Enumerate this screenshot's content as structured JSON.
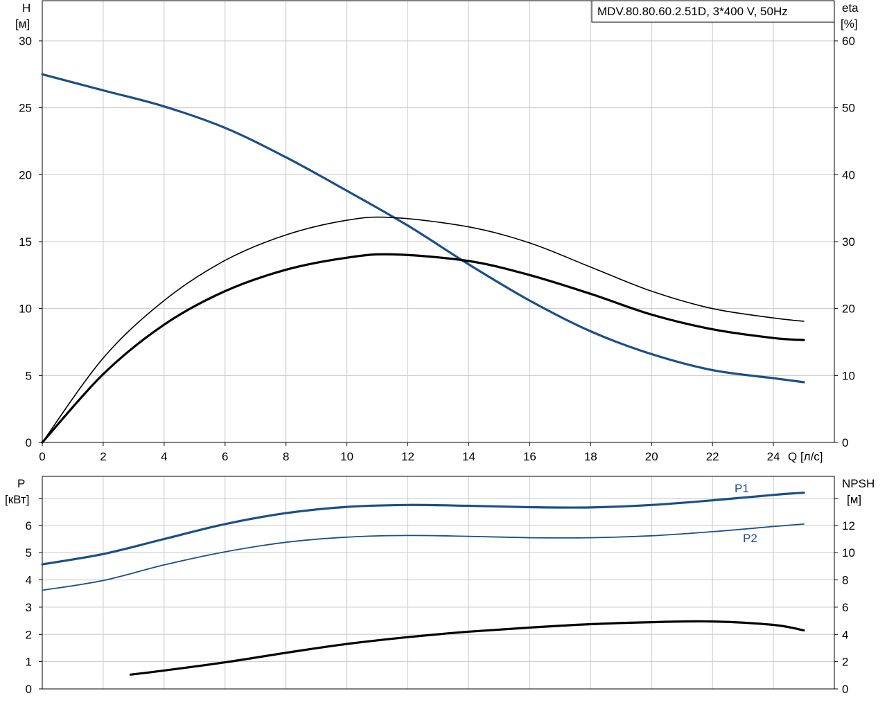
{
  "colors": {
    "blue": "#1a4f88",
    "black": "#000000",
    "grid": "#c8c8c8"
  },
  "chart_data": [
    {
      "type": "line",
      "title": "MDV.80.80.60.2.51D, 3*400 V, 50Hz",
      "xlabel": "Q [л/с]",
      "ylabel_left_name": "H",
      "ylabel_left_unit": "[м]",
      "ylabel_right_name": "eta",
      "ylabel_right_unit": "[%]",
      "xlim": [
        0,
        26
      ],
      "ylim_left": [
        0,
        33
      ],
      "ylim_right": [
        0,
        66
      ],
      "x_ticks": [
        "0",
        "2",
        "4",
        "6",
        "8",
        "10",
        "12",
        "14",
        "16",
        "18",
        "20",
        "22",
        "24"
      ],
      "y_ticks_left": [
        "0",
        "5",
        "10",
        "15",
        "20",
        "25",
        "30"
      ],
      "y_ticks_right": [
        "0",
        "10",
        "20",
        "30",
        "40",
        "50",
        "60"
      ],
      "grid": true,
      "series": [
        {
          "axis": "left",
          "color": "#1a4f88",
          "width": 3.2,
          "x": [
            0,
            2,
            4,
            6,
            8,
            10,
            12,
            14,
            16,
            18,
            20,
            22,
            24,
            25
          ],
          "y": [
            27.5,
            26.3,
            25.1,
            23.5,
            21.3,
            18.8,
            16.2,
            13.3,
            10.6,
            8.3,
            6.6,
            5.4,
            4.8,
            4.5
          ]
        },
        {
          "axis": "right",
          "color": "#000000",
          "width": 1.6,
          "x": [
            0,
            2,
            4,
            6,
            8,
            10,
            11.5,
            14,
            16,
            18,
            20,
            22,
            24,
            25
          ],
          "y": [
            0,
            12.6,
            21.2,
            27.2,
            31.0,
            33.2,
            33.6,
            32.2,
            29.8,
            26.2,
            22.6,
            20.0,
            18.6,
            18.1
          ]
        },
        {
          "axis": "right",
          "color": "#000000",
          "width": 3.2,
          "x": [
            0,
            2,
            4,
            6,
            8,
            10,
            11.5,
            14,
            16,
            18,
            20,
            22,
            24,
            25
          ],
          "y": [
            0,
            10.2,
            17.6,
            22.6,
            25.8,
            27.6,
            28.1,
            27.1,
            25.0,
            22.2,
            19.1,
            16.9,
            15.6,
            15.3
          ]
        }
      ]
    },
    {
      "type": "line",
      "ylabel_left_name": "P",
      "ylabel_left_unit": "[кВт]",
      "ylabel_right_name": "NPSH",
      "ylabel_right_unit": "[м]",
      "xlim": [
        0,
        26
      ],
      "ylim_left": [
        0,
        7.8
      ],
      "ylim_right": [
        0,
        15.6
      ],
      "y_ticks_left": [
        "0",
        "1",
        "2",
        "3",
        "4",
        "5",
        "6"
      ],
      "y_ticks_right": [
        "0",
        "2",
        "4",
        "6",
        "8",
        "10",
        "12"
      ],
      "grid": true,
      "series": [
        {
          "name": "P1",
          "axis": "left",
          "color": "#1a4f88",
          "width": 3.2,
          "x": [
            0,
            2,
            4,
            6,
            8,
            10,
            12,
            14,
            16,
            18,
            20,
            22,
            24,
            25
          ],
          "y": [
            4.57,
            4.95,
            5.5,
            6.05,
            6.45,
            6.68,
            6.75,
            6.72,
            6.67,
            6.66,
            6.75,
            6.92,
            7.12,
            7.2
          ]
        },
        {
          "name": "P2",
          "axis": "left",
          "color": "#1a4f88",
          "width": 1.8,
          "x": [
            0,
            2,
            4,
            6,
            8,
            10,
            12,
            14,
            16,
            18,
            20,
            22,
            24,
            25
          ],
          "y": [
            3.62,
            3.98,
            4.55,
            5.03,
            5.38,
            5.57,
            5.63,
            5.6,
            5.55,
            5.55,
            5.62,
            5.77,
            5.96,
            6.05
          ]
        },
        {
          "axis": "right",
          "color": "#000000",
          "width": 3.2,
          "x": [
            2.9,
            4,
            6,
            8,
            10,
            12,
            14,
            16,
            18,
            20,
            22,
            24,
            25
          ],
          "y": [
            1.05,
            1.35,
            1.95,
            2.65,
            3.3,
            3.8,
            4.2,
            4.5,
            4.75,
            4.9,
            4.95,
            4.7,
            4.3
          ]
        }
      ]
    }
  ]
}
